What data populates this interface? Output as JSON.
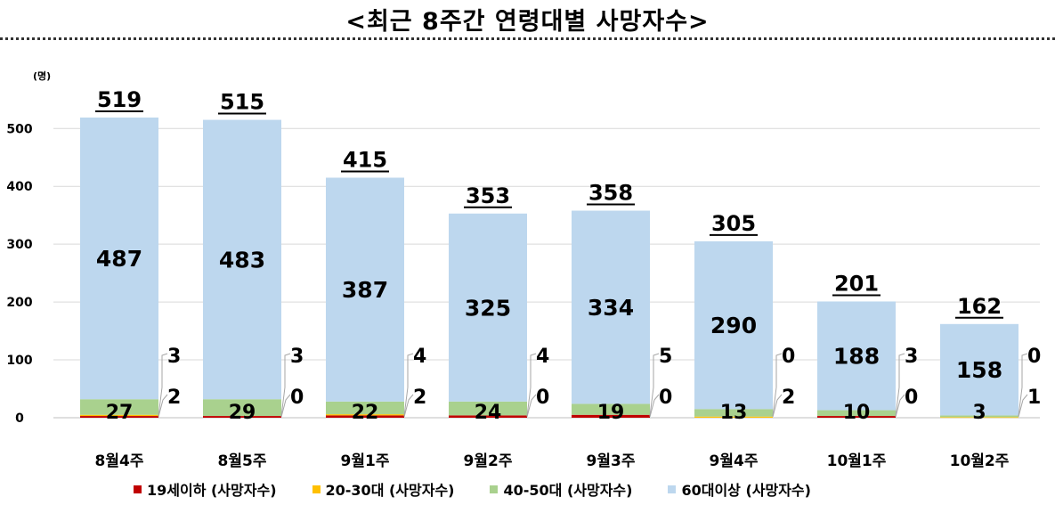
{
  "title": "<최근 8주간 연령대별 사망자수>",
  "chart_data": {
    "type": "bar",
    "stacked": true,
    "unit": "(명)",
    "categories": [
      "8월4주",
      "8월5주",
      "9월1주",
      "9월2주",
      "9월3주",
      "9월4주",
      "10월1주",
      "10월2주"
    ],
    "series": [
      {
        "name": "19세이하 (사망자수)",
        "color": "#c00000",
        "values": [
          3,
          3,
          4,
          4,
          5,
          0,
          3,
          0
        ]
      },
      {
        "name": "20-30대 (사망자수)",
        "color": "#ffc000",
        "values": [
          2,
          0,
          2,
          0,
          0,
          2,
          0,
          1
        ]
      },
      {
        "name": "40-50대 (사망자수)",
        "color": "#a9d18e",
        "values": [
          27,
          29,
          22,
          24,
          19,
          13,
          10,
          3
        ]
      },
      {
        "name": "60대이상 (사망자수)",
        "color": "#bdd7ee",
        "values": [
          487,
          483,
          387,
          325,
          334,
          290,
          188,
          158
        ]
      }
    ],
    "totals": [
      519,
      515,
      415,
      353,
      358,
      305,
      201,
      162
    ],
    "yticks": [
      "0",
      "100",
      "200",
      "300",
      "400",
      "500"
    ],
    "ylim": [
      0,
      560
    ],
    "grid": true,
    "legend": "bottom"
  }
}
